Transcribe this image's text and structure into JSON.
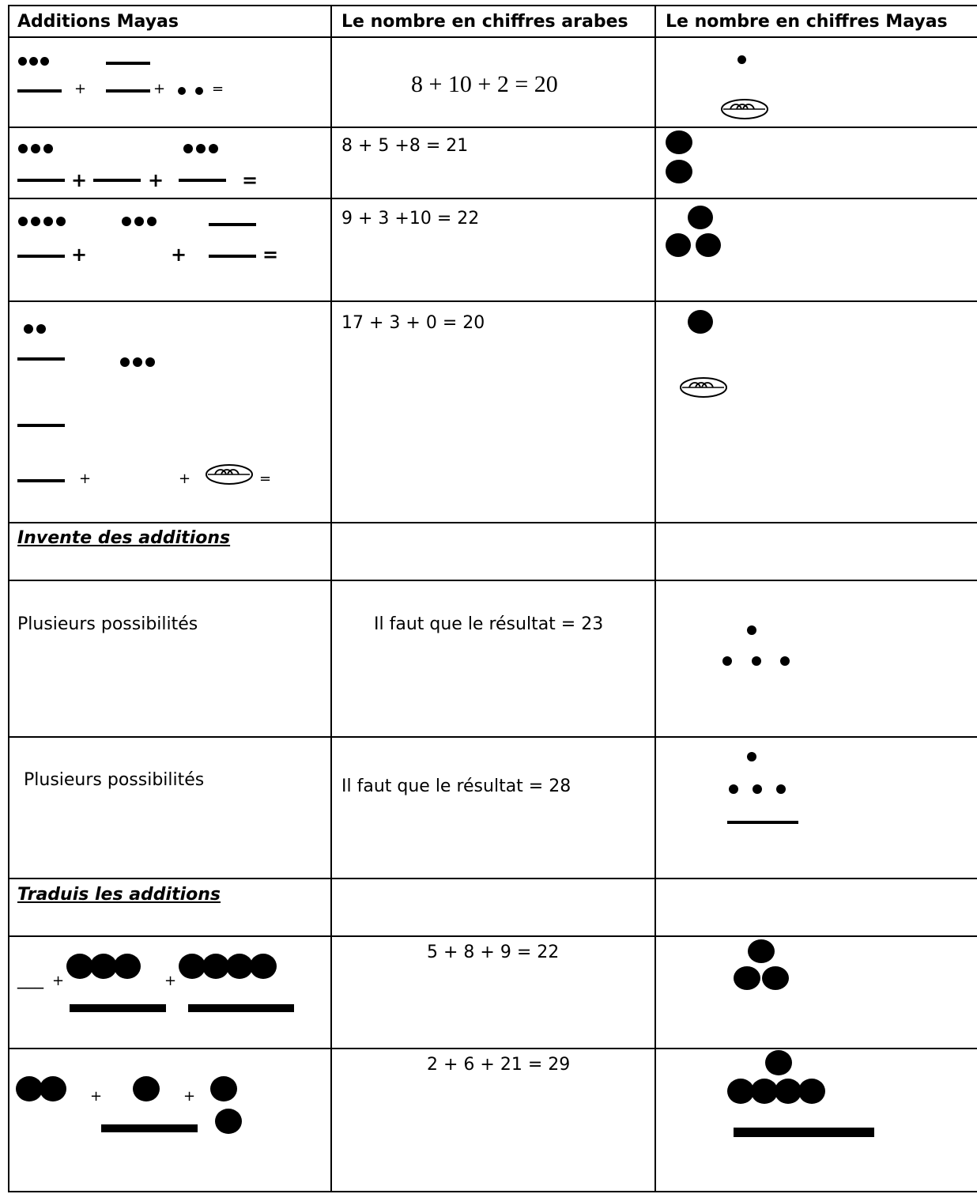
{
  "header": {
    "col1": "Additions Mayas",
    "col2": "Le nombre en chiffres arabes",
    "col3": "Le nombre en chiffres Mayas"
  },
  "rows": [
    {
      "arabic": "8 + 10 + 2  = 20",
      "ops": [
        "+",
        "+",
        "="
      ]
    },
    {
      "arabic": "8 + 5 +8 = 21",
      "ops": [
        "+",
        "+",
        "="
      ]
    },
    {
      "arabic": "9 + 3 +10 = 22",
      "ops": [
        "+",
        "+",
        "="
      ]
    },
    {
      "arabic": "17 + 3 + 0 = 20",
      "ops": [
        "+",
        "+",
        "="
      ]
    }
  ],
  "section_invent": {
    "title": "Invente des additions",
    "rows": [
      {
        "col1": "Plusieurs possibilités",
        "col2": "Il faut que le résultat = 23"
      },
      {
        "col1": "Plusieurs possibilités",
        "col2": "Il faut que le résultat = 28"
      }
    ]
  },
  "section_translate": {
    "title": "Traduis les additions",
    "rows": [
      {
        "blank": "___",
        "ops": [
          "+",
          "+"
        ],
        "arabic": "5 + 8  + 9 = 22"
      },
      {
        "ops": [
          "+",
          "+"
        ],
        "arabic": "2 + 6 + 21 = 29"
      }
    ]
  }
}
